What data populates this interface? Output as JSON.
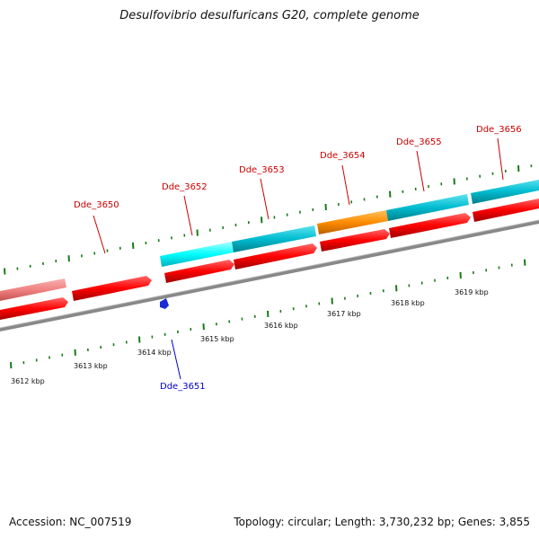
{
  "title": "Desulfovibrio desulfuricans G20, complete genome",
  "footer": {
    "accession": "Accession: NC_007519",
    "summary": "Topology: circular; Length: 3,730,232 bp; Genes: 3,855"
  },
  "colors": {
    "forward_cds": "#ff0000",
    "reverse_cds": "#ff0000",
    "rna": "#00bcd0",
    "highlight": "#00ffff",
    "orange": "#ff8c00",
    "pseudo": "#f08080",
    "backbone": "#808080",
    "ticks": "#1a7a1a",
    "label_red": "#cc0000",
    "label_blue": "#0000cc"
  },
  "scale_labels": [
    "3612 kbp",
    "3613 kbp",
    "3614 kbp",
    "3615 kbp",
    "3616 kbp",
    "3617 kbp",
    "3618 kbp",
    "3619 kbp"
  ],
  "gene_labels": [
    {
      "name": "Dde_3650",
      "color": "label_red"
    },
    {
      "name": "Dde_3651",
      "color": "label_blue"
    },
    {
      "name": "Dde_3652",
      "color": "label_red"
    },
    {
      "name": "Dde_3653",
      "color": "label_red"
    },
    {
      "name": "Dde_3654",
      "color": "label_red"
    },
    {
      "name": "Dde_3655",
      "color": "label_red"
    },
    {
      "name": "Dde_3656",
      "color": "label_red"
    }
  ]
}
